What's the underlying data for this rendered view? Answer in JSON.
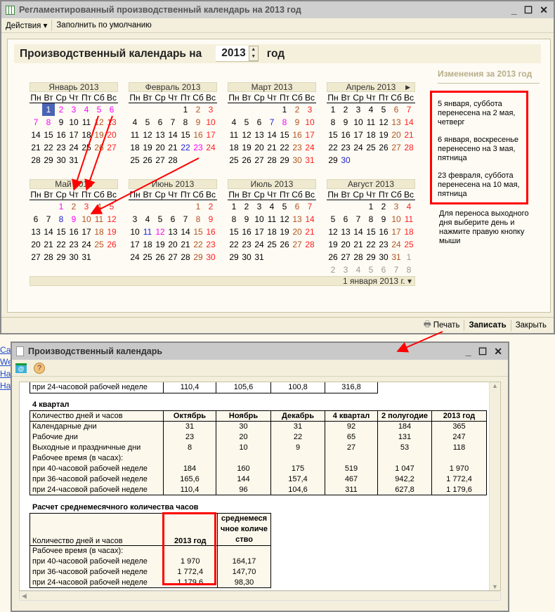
{
  "window1": {
    "title": "Регламентированный производственный календарь на 2013 год",
    "menu_actions": "Действия",
    "menu_fill": "Заполнить по умолчанию",
    "heading": "Производственный календарь на",
    "year": "2013",
    "year_suffix": "год",
    "weekdays": [
      "Пн",
      "Вт",
      "Ср",
      "Чт",
      "Пт",
      "Сб",
      "Вс"
    ],
    "months": [
      {
        "title": "Январь 2013",
        "m": 0,
        "days": {
          "1": "hol",
          "2": "hol",
          "3": "hol",
          "4": "hol",
          "5": "hol",
          "6": "hol",
          "7": "hol",
          "8": "hol"
        },
        "selected": 1
      },
      {
        "title": "Февраль 2013",
        "m": 1,
        "days": {
          "22": "pre",
          "23": "hol"
        }
      },
      {
        "title": "Март 2013",
        "m": 2,
        "days": {
          "7": "pre",
          "8": "hol"
        }
      },
      {
        "title": "Апрель 2013",
        "m": 3,
        "days": {
          "30": "pre"
        },
        "next": true
      },
      {
        "title": "Май 2013",
        "m": 4,
        "days": {
          "1": "hol",
          "2": "sat",
          "3": "sun",
          "8": "pre",
          "9": "hol",
          "10": "sat"
        }
      },
      {
        "title": "Июнь 2013",
        "m": 5,
        "days": {
          "11": "pre",
          "12": "hol"
        }
      },
      {
        "title": "Июль 2013",
        "m": 6,
        "days": {}
      },
      {
        "title": "Август 2013",
        "m": 7,
        "days": {},
        "trailing": true
      }
    ],
    "current_date": "1 января 2013 г.",
    "changes_title": "Изменения за 2013 год",
    "changes": [
      "5 января, суббота перенесена на 2 мая, четверг",
      "6 января, воскресенье перенесено на 3 мая, пятница",
      "23 февраля, суббота перенесена на 10 мая, пятница"
    ],
    "hint": "Для переноса выходного дня выберите день и нажмите правую кнопку мыши",
    "print": "Печать",
    "save": "Записать",
    "close": "Закрыть"
  },
  "links": [
    "Сай",
    "Wel",
    "Наг",
    "Наг"
  ],
  "window2": {
    "title": "Производственный календарь",
    "prev_row": [
      "при 24-часовой рабочей неделе",
      "110,4",
      "105,6",
      "100,8",
      "316,8"
    ],
    "q4_title": "4 квартал",
    "q4_headers": [
      "Количество дней и часов",
      "Октябрь",
      "Ноябрь",
      "Декабрь",
      "4 квартал",
      "2 полугодие",
      "2013 год"
    ],
    "q4_rows": [
      [
        "Календарные дни",
        "31",
        "30",
        "31",
        "92",
        "184",
        "365"
      ],
      [
        "Рабочие дни",
        "23",
        "20",
        "22",
        "65",
        "131",
        "247"
      ],
      [
        "Выходные и праздничные дни",
        "8",
        "10",
        "9",
        "27",
        "53",
        "118"
      ],
      [
        "Рабочее время (в часах):",
        "",
        "",
        "",
        "",
        "",
        ""
      ],
      [
        "при 40-часовой рабочей неделе",
        "184",
        "160",
        "175",
        "519",
        "1 047",
        "1 970"
      ],
      [
        "при 36-часовой рабочей неделе",
        "165,6",
        "144",
        "157,4",
        "467",
        "942,2",
        "1 772,4"
      ],
      [
        "при 24-часовой рабочей неделе",
        "110,4",
        "96",
        "104,6",
        "311",
        "627,8",
        "1 179,6"
      ]
    ],
    "avg_title": "Расчет среднемесячного количества часов",
    "avg_headers": [
      "Количество дней и часов",
      "2013 год",
      "среднемесячное количество"
    ],
    "avg_rows": [
      [
        "Рабочее время (в часах):",
        "",
        ""
      ],
      [
        "при 40-часовой рабочей неделе",
        "1 970",
        "164,17"
      ],
      [
        "при 36-часовой рабочей неделе",
        "1 772,4",
        "147,70"
      ],
      [
        "при 24-часовой рабочей неделе",
        "1 179,6",
        "98,30"
      ]
    ]
  },
  "colors": {
    "saturday": "#b3531f",
    "sunday": "#ff1f1f",
    "holiday": "#ff00ff",
    "preholiday": "#2020d0",
    "annotation": "#ff0000"
  }
}
